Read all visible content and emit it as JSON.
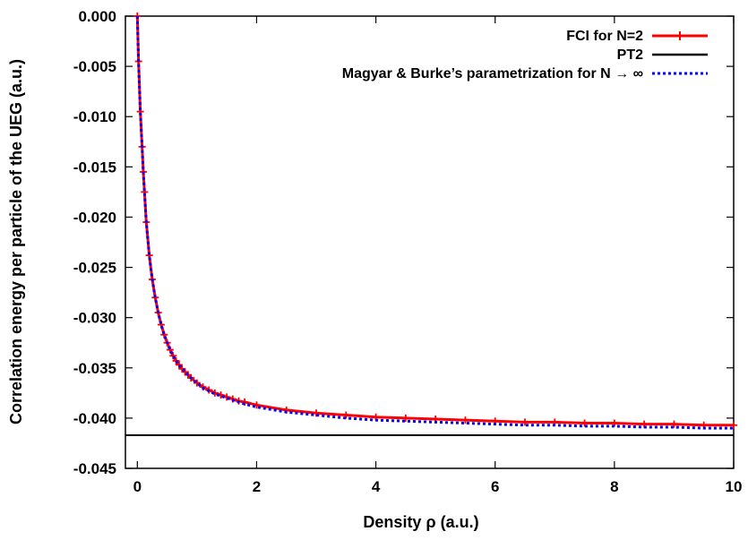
{
  "chart_data": {
    "type": "line",
    "xlabel": "Density  ρ (a.u.)",
    "ylabel": "Correlation energy per particle of the UEG (a.u.)",
    "xlim": [
      -0.2,
      10
    ],
    "ylim": [
      -0.045,
      0.0
    ],
    "xticks": [
      0,
      2,
      4,
      6,
      8,
      10
    ],
    "xtick_labels": [
      "0",
      "2",
      "4",
      "6",
      "8",
      "10"
    ],
    "yticks": [
      0.0,
      -0.005,
      -0.01,
      -0.015,
      -0.02,
      -0.025,
      -0.03,
      -0.035,
      -0.04,
      -0.045
    ],
    "ytick_labels": [
      "0.000",
      "-0.005",
      "-0.010",
      "-0.015",
      "-0.020",
      "-0.025",
      "-0.030",
      "-0.035",
      "-0.040",
      "-0.045"
    ],
    "legend_position": "top-right",
    "series": [
      {
        "name": "FCI for N=2",
        "color": "#ff0000",
        "style": "line-with-plus-markers",
        "x": [
          0.0,
          0.02,
          0.05,
          0.08,
          0.1,
          0.12,
          0.15,
          0.2,
          0.25,
          0.3,
          0.35,
          0.4,
          0.45,
          0.5,
          0.55,
          0.6,
          0.65,
          0.7,
          0.75,
          0.8,
          0.85,
          0.9,
          1.0,
          1.1,
          1.2,
          1.3,
          1.4,
          1.5,
          1.6,
          1.7,
          1.8,
          2.0,
          2.5,
          3.0,
          3.5,
          4.0,
          4.5,
          5.0,
          5.5,
          6.0,
          6.5,
          7.0,
          7.5,
          8.0,
          8.5,
          9.0,
          9.5,
          10.0
        ],
        "y": [
          0.0,
          -0.0045,
          -0.0095,
          -0.013,
          -0.0155,
          -0.0175,
          -0.0205,
          -0.0238,
          -0.0262,
          -0.028,
          -0.0295,
          -0.0307,
          -0.0317,
          -0.0325,
          -0.0332,
          -0.0338,
          -0.0343,
          -0.0347,
          -0.0351,
          -0.0354,
          -0.0357,
          -0.036,
          -0.0365,
          -0.0369,
          -0.0372,
          -0.0375,
          -0.0377,
          -0.0379,
          -0.0381,
          -0.0383,
          -0.0384,
          -0.0387,
          -0.0392,
          -0.0395,
          -0.0397,
          -0.0399,
          -0.04,
          -0.0401,
          -0.0402,
          -0.0403,
          -0.0404,
          -0.0404,
          -0.0405,
          -0.0405,
          -0.0406,
          -0.0406,
          -0.0407,
          -0.0407
        ]
      },
      {
        "name": "PT2",
        "color": "#000000",
        "style": "solid-line",
        "x": [
          -0.2,
          10.0
        ],
        "y": [
          -0.0417,
          -0.0417
        ]
      },
      {
        "name": "Magyar & Burke’s parametrization for N → ∞",
        "color": "#0000ff",
        "style": "dotted-line",
        "x": [
          0.0,
          0.02,
          0.05,
          0.08,
          0.1,
          0.12,
          0.15,
          0.2,
          0.25,
          0.3,
          0.35,
          0.4,
          0.45,
          0.5,
          0.55,
          0.6,
          0.65,
          0.7,
          0.75,
          0.8,
          0.85,
          0.9,
          1.0,
          1.1,
          1.2,
          1.3,
          1.4,
          1.5,
          1.6,
          1.7,
          1.8,
          2.0,
          2.5,
          3.0,
          3.5,
          4.0,
          4.5,
          5.0,
          5.5,
          6.0,
          6.5,
          7.0,
          7.5,
          8.0,
          8.5,
          9.0,
          9.5,
          10.0
        ],
        "y": [
          0.0,
          -0.0045,
          -0.0095,
          -0.013,
          -0.0155,
          -0.0175,
          -0.0205,
          -0.0238,
          -0.0262,
          -0.028,
          -0.0295,
          -0.0307,
          -0.0317,
          -0.0325,
          -0.0332,
          -0.0338,
          -0.0343,
          -0.0347,
          -0.0351,
          -0.0354,
          -0.0357,
          -0.036,
          -0.0365,
          -0.037,
          -0.0373,
          -0.0376,
          -0.0378,
          -0.038,
          -0.0382,
          -0.0384,
          -0.0386,
          -0.0389,
          -0.0394,
          -0.0397,
          -0.04,
          -0.0402,
          -0.0403,
          -0.0404,
          -0.0405,
          -0.0406,
          -0.0407,
          -0.0407,
          -0.0408,
          -0.0408,
          -0.0409,
          -0.0409,
          -0.041,
          -0.041
        ]
      }
    ]
  }
}
